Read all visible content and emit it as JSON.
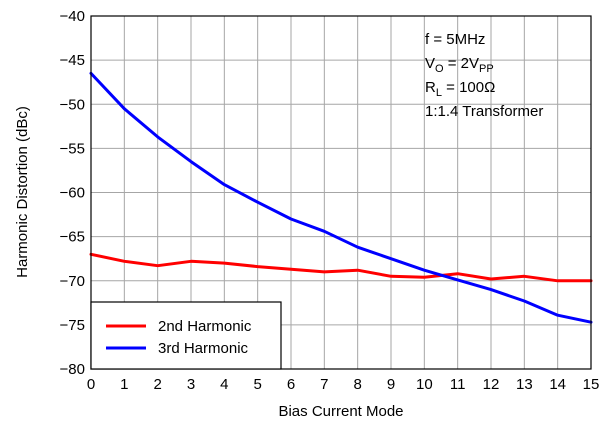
{
  "chart_data": {
    "type": "line",
    "xlabel": "Bias Current Mode",
    "ylabel": "Harmonic Distortion (dBc)",
    "xlim": [
      0,
      15
    ],
    "ylim": [
      -80,
      -40
    ],
    "xticks": [
      0,
      1,
      2,
      3,
      4,
      5,
      6,
      7,
      8,
      9,
      10,
      11,
      12,
      13,
      14,
      15
    ],
    "yticks": [
      -40,
      -45,
      -50,
      -55,
      -60,
      -65,
      -70,
      -75,
      -80
    ],
    "ytick_labels": [
      "−40",
      "−45",
      "−50",
      "−55",
      "−60",
      "−65",
      "−70",
      "−75",
      "−80"
    ],
    "grid": true,
    "legend_position": "bottom-left",
    "annotation": [
      {
        "main": "f = 5MHz"
      },
      {
        "main": "V",
        "sub": "O",
        "rest": " = 2V",
        "sub2": "PP"
      },
      {
        "main": "R",
        "sub": "L",
        "rest": " = 100Ω"
      },
      {
        "main": "1:1.4 Transformer"
      }
    ],
    "x": [
      0,
      1,
      2,
      3,
      4,
      5,
      6,
      7,
      8,
      9,
      10,
      11,
      12,
      13,
      14,
      15
    ],
    "series": [
      {
        "name": "2nd Harmonic",
        "color": "#ff0000",
        "values": [
          -67.0,
          -67.8,
          -68.3,
          -67.8,
          -68.0,
          -68.4,
          -68.7,
          -69.0,
          -68.8,
          -69.5,
          -69.6,
          -69.2,
          -69.8,
          -69.5,
          -70.0,
          -70.0
        ]
      },
      {
        "name": "3rd Harmonic",
        "color": "#0000ff",
        "values": [
          -46.5,
          -50.5,
          -53.7,
          -56.5,
          -59.1,
          -61.1,
          -63.0,
          -64.4,
          -66.2,
          -67.5,
          -68.8,
          -69.9,
          -71.0,
          -72.3,
          -73.9,
          -74.7
        ]
      }
    ]
  }
}
